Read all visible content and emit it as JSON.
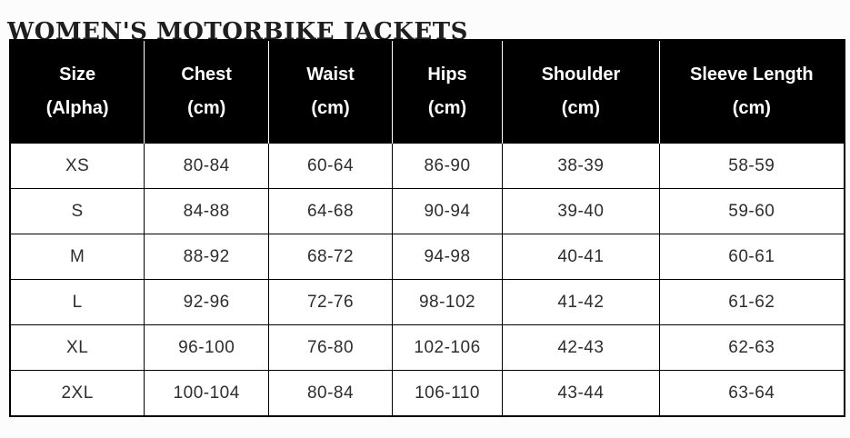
{
  "page": {
    "title": "WOMEN'S MOTORBIKE JACKETS"
  },
  "colors": {
    "header_bg": "#000000",
    "header_text": "#ffffff",
    "cell_bg": "#ffffff",
    "cell_text": "#2e2e2e",
    "border": "#000000",
    "title_text": "#1e1e1e",
    "page_bg": "#fcfcfc"
  },
  "table": {
    "columns": [
      {
        "label": "Size",
        "unit": "(Alpha)"
      },
      {
        "label": "Chest",
        "unit": "(cm)"
      },
      {
        "label": "Waist",
        "unit": "(cm)"
      },
      {
        "label": "Hips",
        "unit": "(cm)"
      },
      {
        "label": "Shoulder",
        "unit": "(cm)"
      },
      {
        "label": "Sleeve Length",
        "unit": "(cm)"
      }
    ],
    "rows": [
      {
        "size": "XS",
        "chest": "80-84",
        "waist": "60-64",
        "hips": "86-90",
        "shoulder": "38-39",
        "sleeve_length": "58-59"
      },
      {
        "size": "S",
        "chest": "84-88",
        "waist": "64-68",
        "hips": "90-94",
        "shoulder": "39-40",
        "sleeve_length": "59-60"
      },
      {
        "size": "M",
        "chest": "88-92",
        "waist": "68-72",
        "hips": "94-98",
        "shoulder": "40-41",
        "sleeve_length": "60-61"
      },
      {
        "size": "L",
        "chest": "92-96",
        "waist": "72-76",
        "hips": "98-102",
        "shoulder": "41-42",
        "sleeve_length": "61-62"
      },
      {
        "size": "XL",
        "chest": "96-100",
        "waist": "76-80",
        "hips": "102-106",
        "shoulder": "42-43",
        "sleeve_length": "62-63"
      },
      {
        "size": "2XL",
        "chest": "100-104",
        "waist": "80-84",
        "hips": "106-110",
        "shoulder": "43-44",
        "sleeve_length": "63-64"
      }
    ]
  }
}
